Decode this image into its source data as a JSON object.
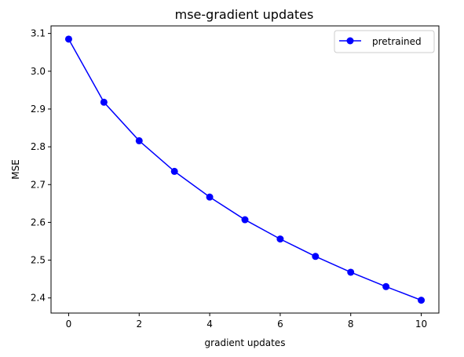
{
  "chart_data": {
    "type": "line",
    "title": "mse-gradient updates",
    "xlabel": "gradient updates",
    "ylabel": "MSE",
    "x": [
      0,
      1,
      2,
      3,
      4,
      5,
      6,
      7,
      8,
      9,
      10
    ],
    "series": [
      {
        "name": "pretrained",
        "color": "#0000ff",
        "marker": "circle",
        "values": [
          3.085,
          2.918,
          2.816,
          2.735,
          2.667,
          2.607,
          2.556,
          2.51,
          2.468,
          2.43,
          2.394
        ]
      }
    ],
    "xlim": [
      -0.5,
      10.5
    ],
    "ylim": [
      2.36,
      3.12
    ],
    "xticks": [
      0,
      2,
      4,
      6,
      8,
      10
    ],
    "yticks": [
      2.4,
      2.5,
      2.6,
      2.7,
      2.8,
      2.9,
      3.0,
      3.1
    ],
    "grid": false,
    "legend_position": "top-right"
  }
}
